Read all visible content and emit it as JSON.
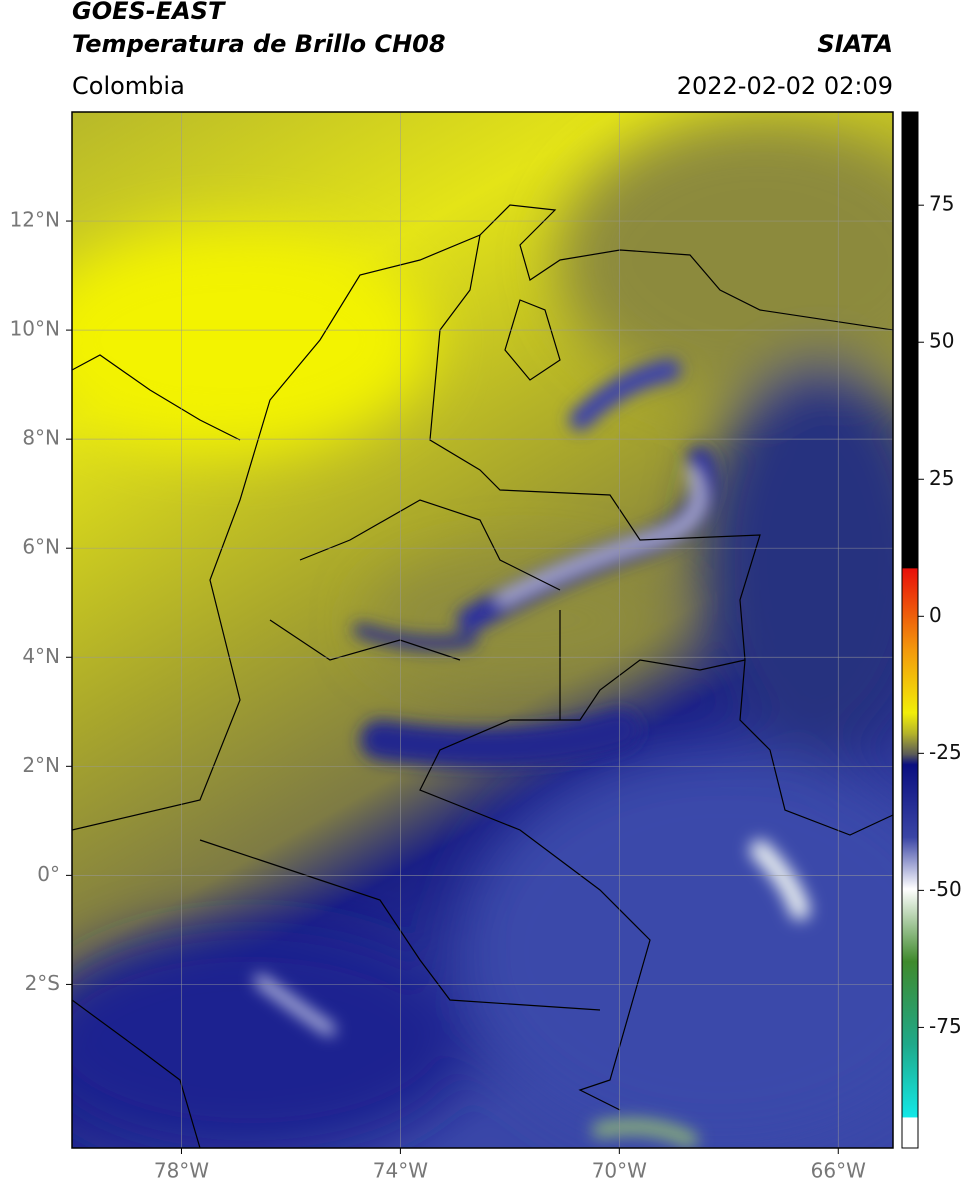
{
  "header": {
    "title": "GOES-EAST",
    "subtitle": "Temperatura de Brillo CH08",
    "source": "SIATA",
    "region": "Colombia",
    "datetime": "2022-02-02 02:09"
  },
  "map": {
    "xlim": [
      -80,
      -65
    ],
    "ylim": [
      -5,
      14
    ],
    "xticks": [
      {
        "value": -78,
        "label": "78°W"
      },
      {
        "value": -74,
        "label": "74°W"
      },
      {
        "value": -70,
        "label": "70°W"
      },
      {
        "value": -66,
        "label": "66°W"
      }
    ],
    "yticks": [
      {
        "value": -2,
        "label": "2°S"
      },
      {
        "value": 0,
        "label": "0°"
      },
      {
        "value": 2,
        "label": "2°N"
      },
      {
        "value": 4,
        "label": "4°N"
      },
      {
        "value": 6,
        "label": "6°N"
      },
      {
        "value": 8,
        "label": "8°N"
      },
      {
        "value": 10,
        "label": "10°N"
      },
      {
        "value": 12,
        "label": "12°N"
      }
    ],
    "grid": true
  },
  "colorbar": {
    "lim": [
      -97,
      92
    ],
    "ticks": [
      75,
      50,
      25,
      0,
      -25,
      -50,
      -75
    ]
  }
}
